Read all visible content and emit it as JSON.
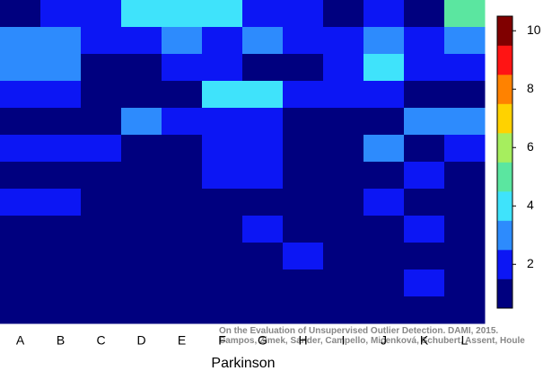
{
  "chart_data": {
    "type": "heatmap",
    "x_label": "Parkinson",
    "categories": [
      "A",
      "B",
      "C",
      "D",
      "E",
      "F",
      "G",
      "H",
      "I",
      "J",
      "K",
      "L"
    ],
    "values": [
      [
        1,
        2,
        2,
        4,
        4,
        4,
        2,
        2,
        1,
        2,
        1,
        5
      ],
      [
        3,
        3,
        2,
        2,
        3,
        2,
        3,
        2,
        2,
        3,
        2,
        3
      ],
      [
        3,
        3,
        1,
        1,
        2,
        2,
        1,
        1,
        2,
        4,
        2,
        2
      ],
      [
        2,
        2,
        1,
        1,
        1,
        4,
        4,
        2,
        2,
        2,
        1,
        1
      ],
      [
        1,
        1,
        1,
        3,
        2,
        2,
        2,
        1,
        1,
        1,
        3,
        3
      ],
      [
        2,
        2,
        2,
        1,
        1,
        2,
        2,
        1,
        1,
        3,
        1,
        2
      ],
      [
        1,
        1,
        1,
        1,
        1,
        2,
        2,
        1,
        1,
        1,
        2,
        1
      ],
      [
        2,
        2,
        1,
        1,
        1,
        1,
        1,
        1,
        1,
        2,
        1,
        1
      ],
      [
        1,
        1,
        1,
        1,
        1,
        1,
        2,
        1,
        1,
        1,
        2,
        1
      ],
      [
        1,
        1,
        1,
        1,
        1,
        1,
        1,
        2,
        1,
        1,
        1,
        1
      ],
      [
        1,
        1,
        1,
        1,
        1,
        1,
        1,
        1,
        1,
        1,
        2,
        1
      ],
      [
        1,
        1,
        1,
        1,
        1,
        1,
        1,
        1,
        1,
        1,
        1,
        1
      ]
    ],
    "colorbar": {
      "lim": [
        0.5,
        10.5
      ],
      "ticks": [
        2,
        4,
        6,
        8,
        10
      ],
      "colors": [
        "#00007f",
        "#0c16f4",
        "#2d8bfd",
        "#3fe3fb",
        "#5be6a0",
        "#a6ee5e",
        "#ffd200",
        "#ff8200",
        "#ff1414",
        "#800000"
      ]
    },
    "annotations": [
      "On the Evaluation of Unsupervised Outlier Detection. DAMI, 2015.",
      "Campos, Zimek, Sander, Campello, Micenková, Schubert, Assent, Houle"
    ]
  }
}
